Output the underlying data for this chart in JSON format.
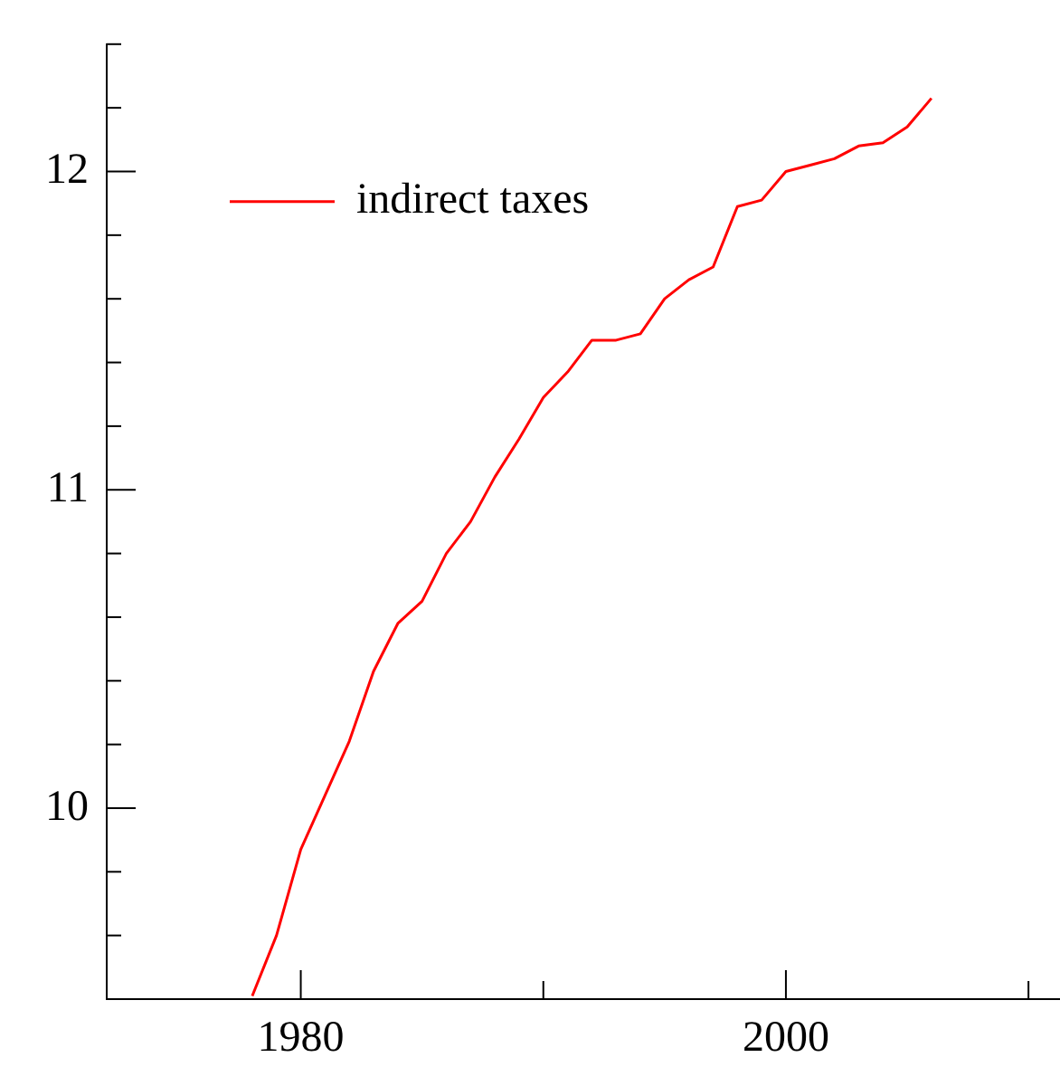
{
  "chart_data": {
    "type": "line",
    "x": [
      1978,
      1979,
      1980,
      1981,
      1982,
      1983,
      1984,
      1985,
      1986,
      1987,
      1988,
      1989,
      1990,
      1991,
      1992,
      1993,
      1994,
      1995,
      1996,
      1997,
      1998,
      1999,
      2000,
      2001,
      2002,
      2003,
      2004,
      2005,
      2006
    ],
    "series": [
      {
        "name": "indirect taxes",
        "color": "#ff0000",
        "values": [
          9.41,
          9.6,
          9.87,
          10.04,
          10.21,
          10.43,
          10.58,
          10.65,
          10.8,
          10.9,
          11.04,
          11.16,
          11.29,
          11.37,
          11.47,
          11.47,
          11.49,
          11.6,
          11.66,
          11.7,
          11.89,
          11.91,
          12.0,
          12.02,
          12.04,
          12.08,
          12.09,
          12.14,
          12.23
        ]
      }
    ],
    "xlim": [
      1972,
      2011.3
    ],
    "xticks": [
      {
        "value": 1980,
        "label": "1980"
      },
      {
        "value": 1990,
        "label": null
      },
      {
        "value": 2000,
        "label": "2000"
      },
      {
        "value": 2010,
        "label": null
      }
    ],
    "ylim": [
      9.4,
      12.4
    ],
    "yticks": [
      {
        "value": 9.6,
        "label": null
      },
      {
        "value": 9.8,
        "label": null
      },
      {
        "value": 10,
        "label": "10"
      },
      {
        "value": 10.2,
        "label": null
      },
      {
        "value": 10.4,
        "label": null
      },
      {
        "value": 10.6,
        "label": null
      },
      {
        "value": 10.8,
        "label": null
      },
      {
        "value": 11,
        "label": "11"
      },
      {
        "value": 11.2,
        "label": null
      },
      {
        "value": 11.4,
        "label": null
      },
      {
        "value": 11.6,
        "label": null
      },
      {
        "value": 11.8,
        "label": null
      },
      {
        "value": 12,
        "label": "12"
      },
      {
        "value": 12.2,
        "label": null
      },
      {
        "value": 12.4,
        "label": null
      }
    ],
    "grid": false,
    "legend": "top left",
    "marker": "none",
    "line_style": "solid"
  }
}
